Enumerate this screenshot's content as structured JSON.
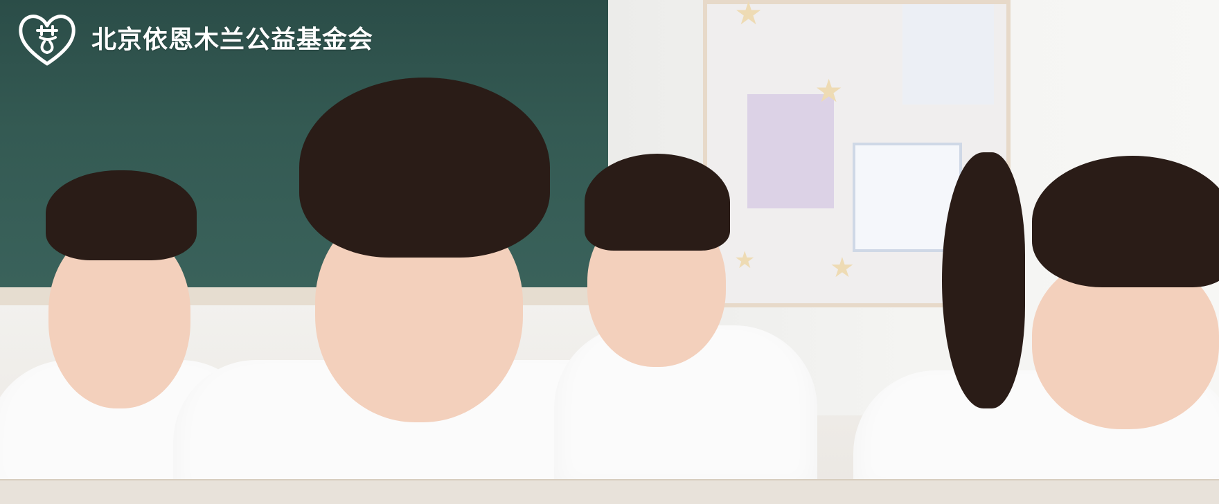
{
  "header": {
    "org_name": "北京依恩木兰公益基金会",
    "logo_icon": "heart-logo-icon"
  },
  "banner": {
    "image_subject": "classroom-children-studying"
  },
  "colors": {
    "logo_text": "#ffffff",
    "chalkboard": "#345a53"
  }
}
